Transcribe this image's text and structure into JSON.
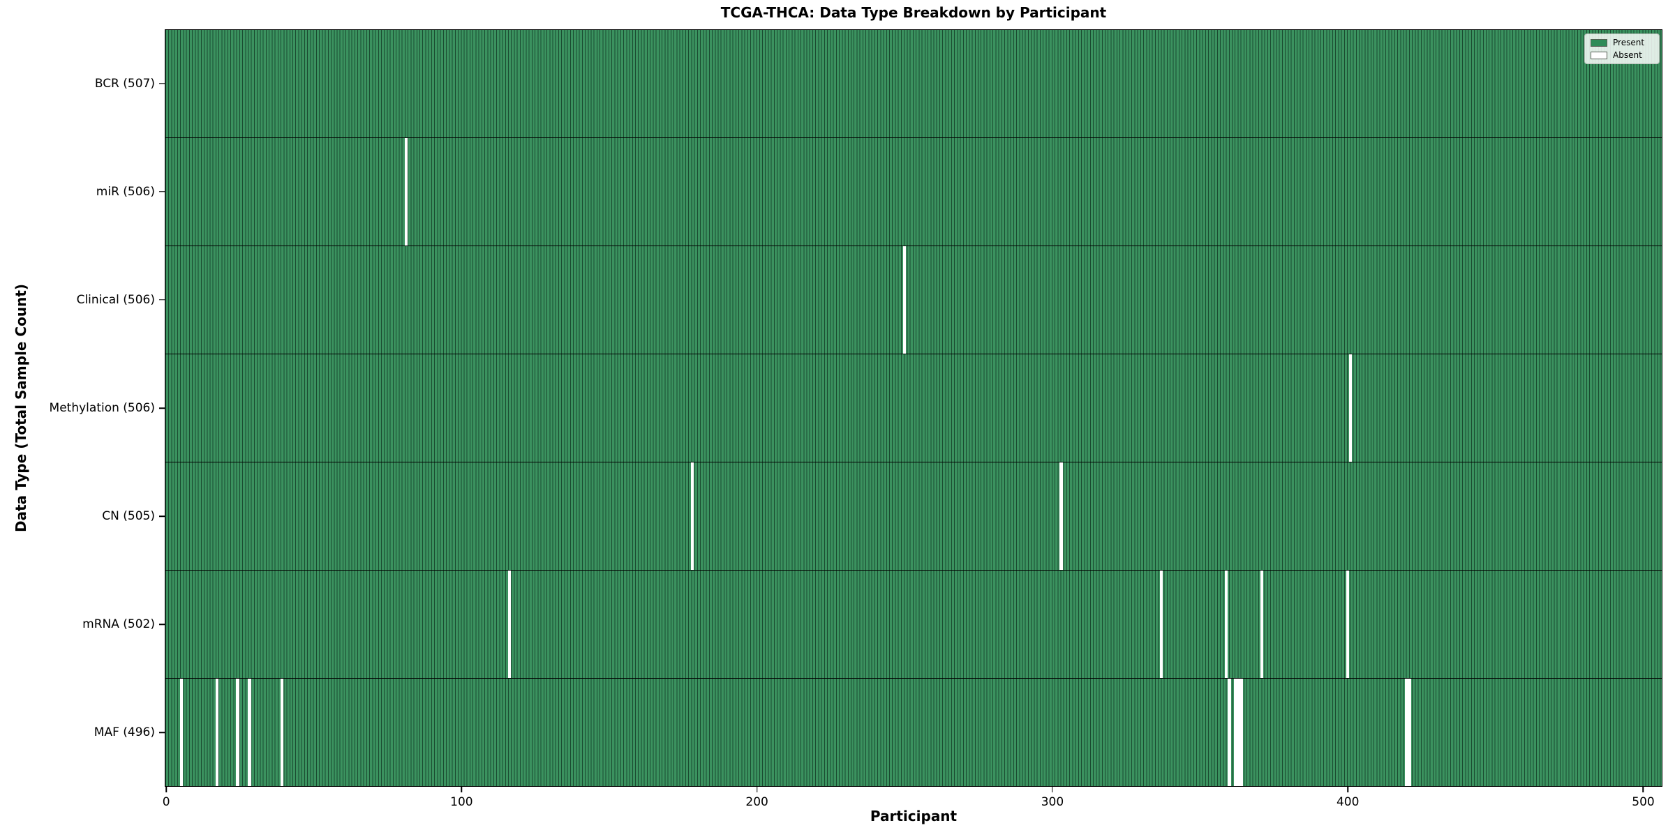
{
  "title": "TCGA-THCA: Data Type Breakdown by Participant",
  "x_axis": {
    "label": "Participant",
    "ticks": [
      0,
      100,
      200,
      300,
      400,
      500
    ]
  },
  "y_axis": {
    "label": "Data Type (Total Sample Count)"
  },
  "legend": {
    "present_label": "Present",
    "absent_label": "Absent"
  },
  "colors": {
    "present_fill": "#3b925f",
    "cell_edge": "#1a4a30",
    "absent_fill": "#ffffff",
    "legend_present_swatch": "#2e8b57"
  },
  "chart_data": {
    "type": "heatmap",
    "title": "TCGA-THCA: Data Type Breakdown by Participant",
    "xlabel": "Participant",
    "ylabel": "Data Type (Total Sample Count)",
    "x_range": [
      0,
      507
    ],
    "total_participants": 507,
    "x_ticks": [
      0,
      100,
      200,
      300,
      400,
      500
    ],
    "legend_entries": [
      "Present",
      "Absent"
    ],
    "legend_position": "upper right",
    "value_encoding": {
      "present": "green cell",
      "absent": "white cell"
    },
    "rows": [
      {
        "label": "BCR (507)",
        "data_type": "BCR",
        "count": 507,
        "absent_participants": []
      },
      {
        "label": "miR (506)",
        "data_type": "miR",
        "count": 506,
        "absent_participants": [
          81
        ]
      },
      {
        "label": "Clinical (506)",
        "data_type": "Clinical",
        "count": 506,
        "absent_participants": [
          250
        ]
      },
      {
        "label": "Methylation (506)",
        "data_type": "Methylation",
        "count": 506,
        "absent_participants": [
          401
        ]
      },
      {
        "label": "CN (505)",
        "data_type": "CN",
        "count": 505,
        "absent_participants": [
          178,
          303
        ]
      },
      {
        "label": "mRNA (502)",
        "data_type": "mRNA",
        "count": 502,
        "absent_participants": [
          116,
          337,
          359,
          371,
          400
        ]
      },
      {
        "label": "MAF (496)",
        "data_type": "MAF",
        "count": 496,
        "absent_participants": [
          5,
          17,
          24,
          28,
          39,
          360,
          362,
          363,
          364,
          420,
          421
        ]
      }
    ]
  }
}
